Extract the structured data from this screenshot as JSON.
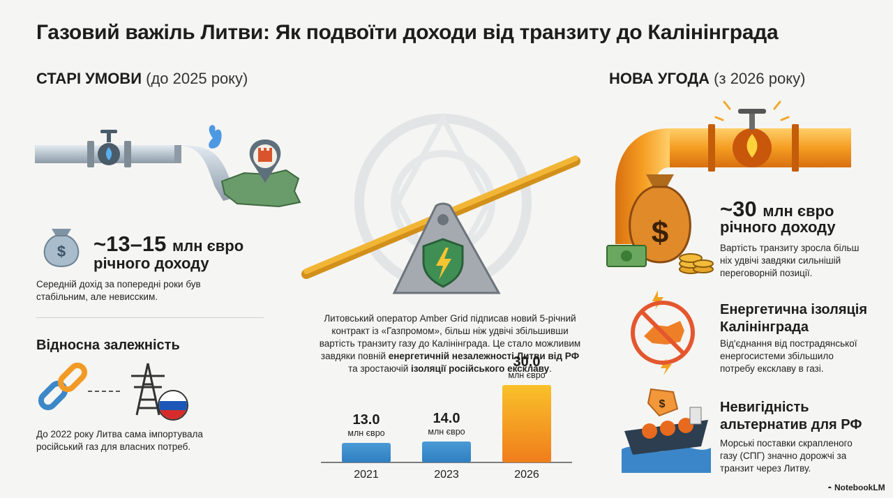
{
  "title": "Газовий важіль Литви: Як подвоїти доходи від транзиту до Калінінграда",
  "left": {
    "heading_bold": "СТАРІ УМОВИ",
    "heading_sub": "(до 2025 року)",
    "revenue_value": "~13–15",
    "revenue_unit": "млн євро",
    "revenue_label": "річного доходу",
    "revenue_desc_1": "Середній дохід за попередні роки був",
    "revenue_desc_2": "стабільним, але невисским.",
    "dependence_title": "Відносна залежність",
    "dependence_desc_1": "До 2022 року Литва сама імпортувала",
    "dependence_desc_2": "російський газ для власних потреб."
  },
  "center": {
    "text_line_1": "Литовський оператор Amber Grid підписав новий 5-річний",
    "text_line_2": "контракт із «Газпромом», більш ніж удвічі збільшивши",
    "text_line_3": "вартість транзиту газу до Калінінграда. Це стало можливим",
    "text_line_4_pre": "завдяки повній ",
    "text_line_4_bold": "енергетичній незалежності Литви від РФ",
    "text_line_5_pre": "та зростаючій ",
    "text_line_5_bold": "ізоляції російського ексклаву",
    "text_line_5_post": "."
  },
  "chart_data": {
    "type": "bar",
    "categories": [
      "2021",
      "2023",
      "2026"
    ],
    "values": [
      13.0,
      14.0,
      30.0
    ],
    "value_labels": [
      "13.0",
      "14.0",
      "30.0"
    ],
    "unit_label": "млн євро",
    "ylim": [
      0,
      30
    ],
    "colors": [
      "#3d8fd0",
      "#3d8fd0",
      "#f39a1f"
    ]
  },
  "right": {
    "heading_bold": "НОВА УГОДА",
    "heading_sub": "(з 2026 року)",
    "revenue_value": "~30",
    "revenue_unit": "млн євро",
    "revenue_label": "річного доходу",
    "revenue_desc_1": "Вартість транзиту зросла більш",
    "revenue_desc_2": "ніх удвічі завдяки сильнішій",
    "revenue_desc_3": "переговорній позиції.",
    "isolation_title_1": "Енергетична ізоляція",
    "isolation_title_2": "Калінінграда",
    "isolation_desc_1": "Від'єднання від пострадянської",
    "isolation_desc_2": "енергосистеми збільшило",
    "isolation_desc_3": "потребу ексклаву в газі.",
    "alt_title_1": "Невигідність",
    "alt_title_2": "альтернатив для РФ",
    "alt_desc_1": "Морські поставки скрапленого",
    "alt_desc_2": "газу (СПГ) значно дорожчі за",
    "alt_desc_3": "транзит через Литву."
  },
  "footer": {
    "brand": "NotebookLM"
  },
  "colors": {
    "accent_orange": "#f39a1f",
    "accent_blue": "#3d8fd0",
    "text_dark": "#1d1d1d"
  }
}
